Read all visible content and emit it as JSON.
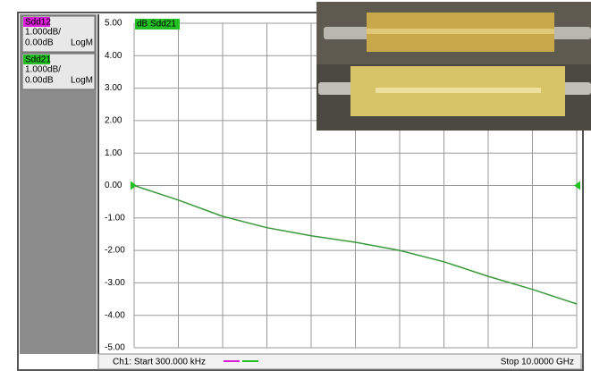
{
  "chart_data": {
    "type": "line",
    "trace_label": "dB Sdd21",
    "trace_panels": [
      {
        "name": "Sdd12",
        "color": "#d81ed8",
        "scale": "1.000dB/",
        "ref": "0.00dB",
        "format": "LogM"
      },
      {
        "name": "Sdd21",
        "color": "#22c022",
        "scale": "1.000dB/",
        "ref": "0.00dB",
        "format": "LogM"
      }
    ],
    "reference_level": 0,
    "x": [
      0.0003,
      1,
      2,
      3,
      4,
      5,
      6,
      7,
      8,
      9,
      10
    ],
    "xlim": [
      0.0003,
      10
    ],
    "start_label": "Ch1: Start  300.000 kHz",
    "stop_label": "Stop  10.0000 GHz",
    "series": [
      {
        "name": "Sdd21",
        "color": "#3a9a3a",
        "values": [
          0,
          -0.45,
          -0.95,
          -1.3,
          -1.55,
          -1.75,
          -2.0,
          -2.35,
          -2.8,
          -3.2,
          -3.65
        ]
      }
    ],
    "ylim": [
      -5,
      5
    ],
    "yticks": [
      {
        "value": 5,
        "label": "5.00"
      },
      {
        "value": 4,
        "label": "4.00"
      },
      {
        "value": 3,
        "label": "3.00"
      },
      {
        "value": 2,
        "label": "2.00"
      },
      {
        "value": 1,
        "label": "1.00"
      },
      {
        "value": 0,
        "label": "0.00"
      },
      {
        "value": -1,
        "label": "-1.00"
      },
      {
        "value": -2,
        "label": "-2.00"
      },
      {
        "value": -3,
        "label": "-3.00"
      },
      {
        "value": -4,
        "label": "-4.00"
      },
      {
        "value": -5,
        "label": "-5.00"
      }
    ],
    "grid": true
  }
}
